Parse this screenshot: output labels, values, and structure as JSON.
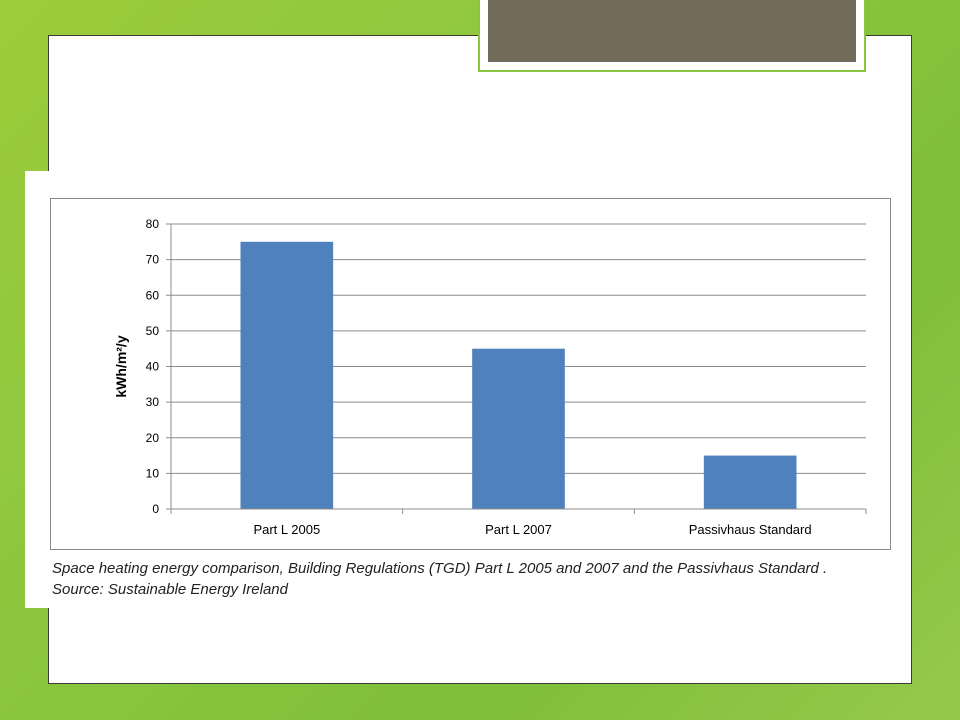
{
  "chart_data": {
    "type": "bar",
    "categories": [
      "Part L 2005",
      "Part L 2007",
      "Passivhaus Standard"
    ],
    "values": [
      75,
      45,
      15
    ],
    "ylabel": "kWh/m²/y",
    "ylim": [
      0,
      80
    ],
    "yticks": [
      0,
      10,
      20,
      30,
      40,
      50,
      60,
      70,
      80
    ],
    "grid": true,
    "bar_color": "#4f81bd"
  },
  "caption": {
    "line1": "Space heating energy comparison, Building Regulations (TGD) Part L 2005 and 2007 and the Passivhaus Standard .",
    "line2": "Source: Sustainable Energy Ireland"
  },
  "colors": {
    "background_green": "#8cc63f",
    "title_tab_fill": "#736b59"
  }
}
